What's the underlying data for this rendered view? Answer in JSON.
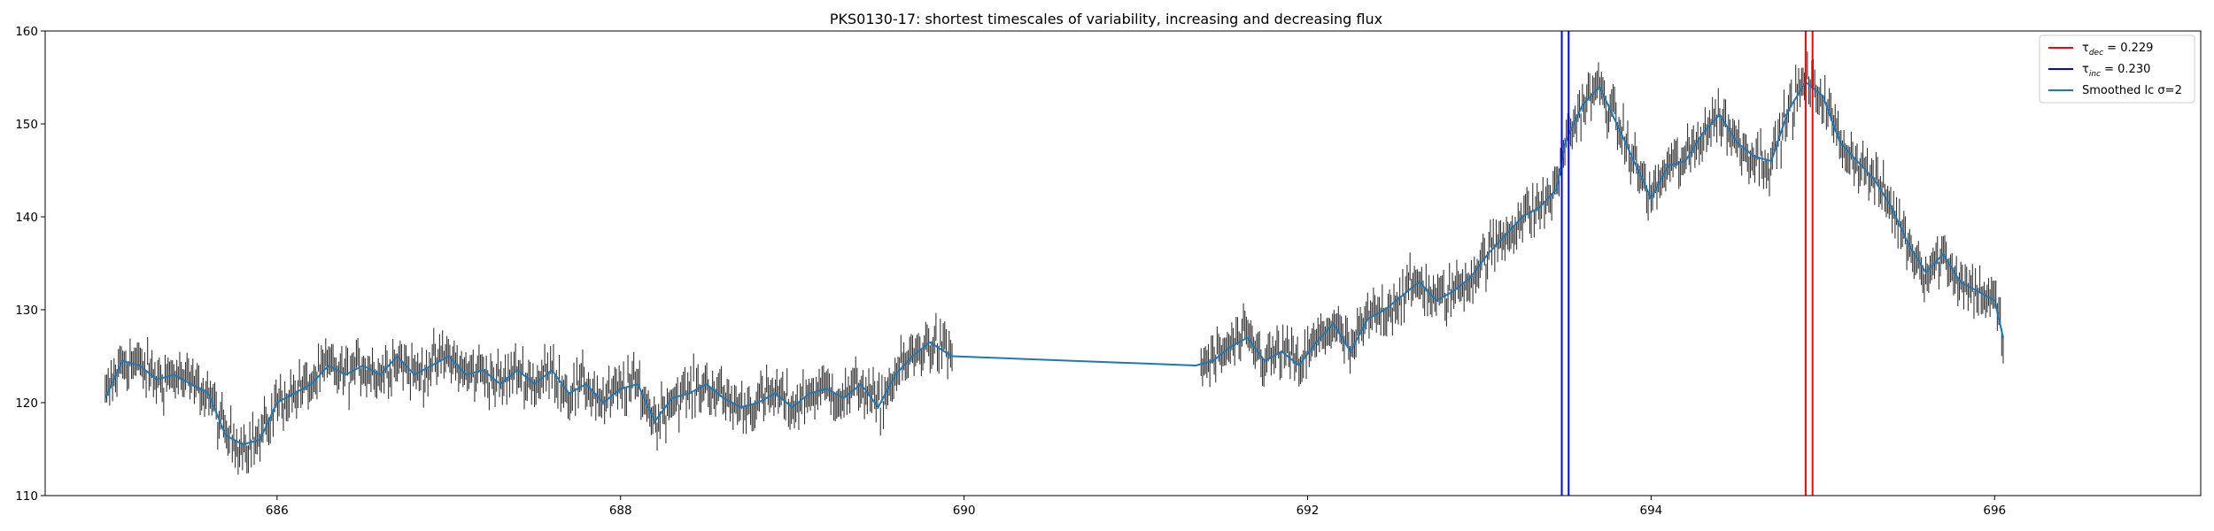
{
  "chart_data": {
    "type": "line",
    "title": "PKS0130-17: shortest timescales of variability, increasing and decreasing flux",
    "xlabel": "",
    "ylabel": "",
    "xlim": [
      684.65,
      697.2
    ],
    "ylim": [
      110,
      160
    ],
    "x_ticks": [
      686,
      688,
      690,
      692,
      694,
      696
    ],
    "y_ticks": [
      110,
      120,
      130,
      140,
      150,
      160
    ],
    "grid": false,
    "legend_position": "top-right",
    "legend": [
      {
        "label": "τdec = 0.229",
        "symbol": "τ",
        "subscript": "dec",
        "value_text": " = 0.229",
        "color": "#ff0000"
      },
      {
        "label": "τinc = 0.230",
        "symbol": "τ",
        "subscript": "inc",
        "value_text": " = 0.230",
        "color": "#0000ff"
      },
      {
        "label": "Smoothed lc σ=2",
        "text": "Smoothed lc σ=2",
        "color": "#1f77b4"
      }
    ],
    "vlines": [
      {
        "series": "inc",
        "x": [
          693.48,
          693.52
        ],
        "color": "#0000ff"
      },
      {
        "series": "dec",
        "x": [
          694.9,
          694.94
        ],
        "color": "#ff0000"
      }
    ],
    "data_range": {
      "segments": [
        [
          685.0,
          689.93
        ],
        [
          691.38,
          696.05
        ]
      ],
      "errorbar_halfwidth": 1.5
    },
    "smoothed_series": {
      "name": "Smoothed lc σ=2",
      "color": "#1f77b4",
      "x": [
        685.0,
        685.1,
        685.2,
        685.3,
        685.4,
        685.5,
        685.6,
        685.7,
        685.8,
        685.9,
        686.0,
        686.2,
        686.3,
        686.4,
        686.5,
        686.6,
        686.7,
        686.8,
        686.9,
        687.0,
        687.1,
        687.2,
        687.3,
        687.4,
        687.5,
        687.6,
        687.7,
        687.8,
        687.9,
        688.0,
        688.1,
        688.2,
        688.3,
        688.4,
        688.5,
        688.6,
        688.7,
        688.8,
        688.9,
        689.0,
        689.1,
        689.2,
        689.3,
        689.4,
        689.5,
        689.6,
        689.7,
        689.8,
        689.93,
        691.35,
        691.45,
        691.55,
        691.65,
        691.75,
        691.85,
        691.95,
        692.05,
        692.15,
        692.25,
        692.35,
        692.45,
        692.55,
        692.65,
        692.75,
        692.85,
        692.95,
        693.05,
        693.15,
        693.25,
        693.35,
        693.45,
        693.5,
        693.6,
        693.7,
        693.8,
        693.9,
        694.0,
        694.1,
        694.2,
        694.3,
        694.4,
        694.5,
        694.6,
        694.7,
        694.8,
        694.9,
        695.0,
        695.1,
        695.2,
        695.3,
        695.4,
        695.5,
        695.6,
        695.7,
        695.8,
        695.9,
        696.0,
        696.05
      ],
      "y": [
        120.5,
        124.5,
        124.0,
        122.5,
        123.0,
        122.0,
        121.0,
        116.5,
        115.5,
        116.0,
        120.0,
        122.0,
        124.0,
        123.0,
        124.0,
        123.0,
        125.0,
        123.0,
        124.0,
        125.0,
        123.0,
        123.5,
        122.0,
        123.5,
        122.0,
        123.5,
        121.0,
        122.0,
        120.0,
        121.5,
        122.0,
        118.0,
        120.5,
        121.0,
        122.0,
        120.5,
        119.5,
        120.0,
        121.0,
        119.5,
        121.0,
        121.5,
        120.5,
        122.0,
        119.5,
        123.0,
        125.0,
        126.5,
        125.0,
        124.0,
        124.5,
        126.0,
        127.0,
        124.5,
        125.5,
        124.0,
        126.5,
        128.5,
        125.5,
        129.0,
        130.0,
        131.5,
        133.0,
        131.0,
        132.0,
        133.5,
        136.0,
        138.0,
        140.0,
        141.0,
        143.0,
        148.0,
        152.0,
        154.0,
        150.0,
        146.0,
        142.0,
        145.5,
        146.0,
        149.0,
        151.0,
        148.0,
        146.5,
        146.0,
        151.5,
        154.5,
        153.0,
        148.0,
        146.0,
        144.0,
        141.0,
        137.0,
        134.0,
        136.0,
        133.0,
        132.0,
        131.0,
        127.0
      ]
    }
  }
}
